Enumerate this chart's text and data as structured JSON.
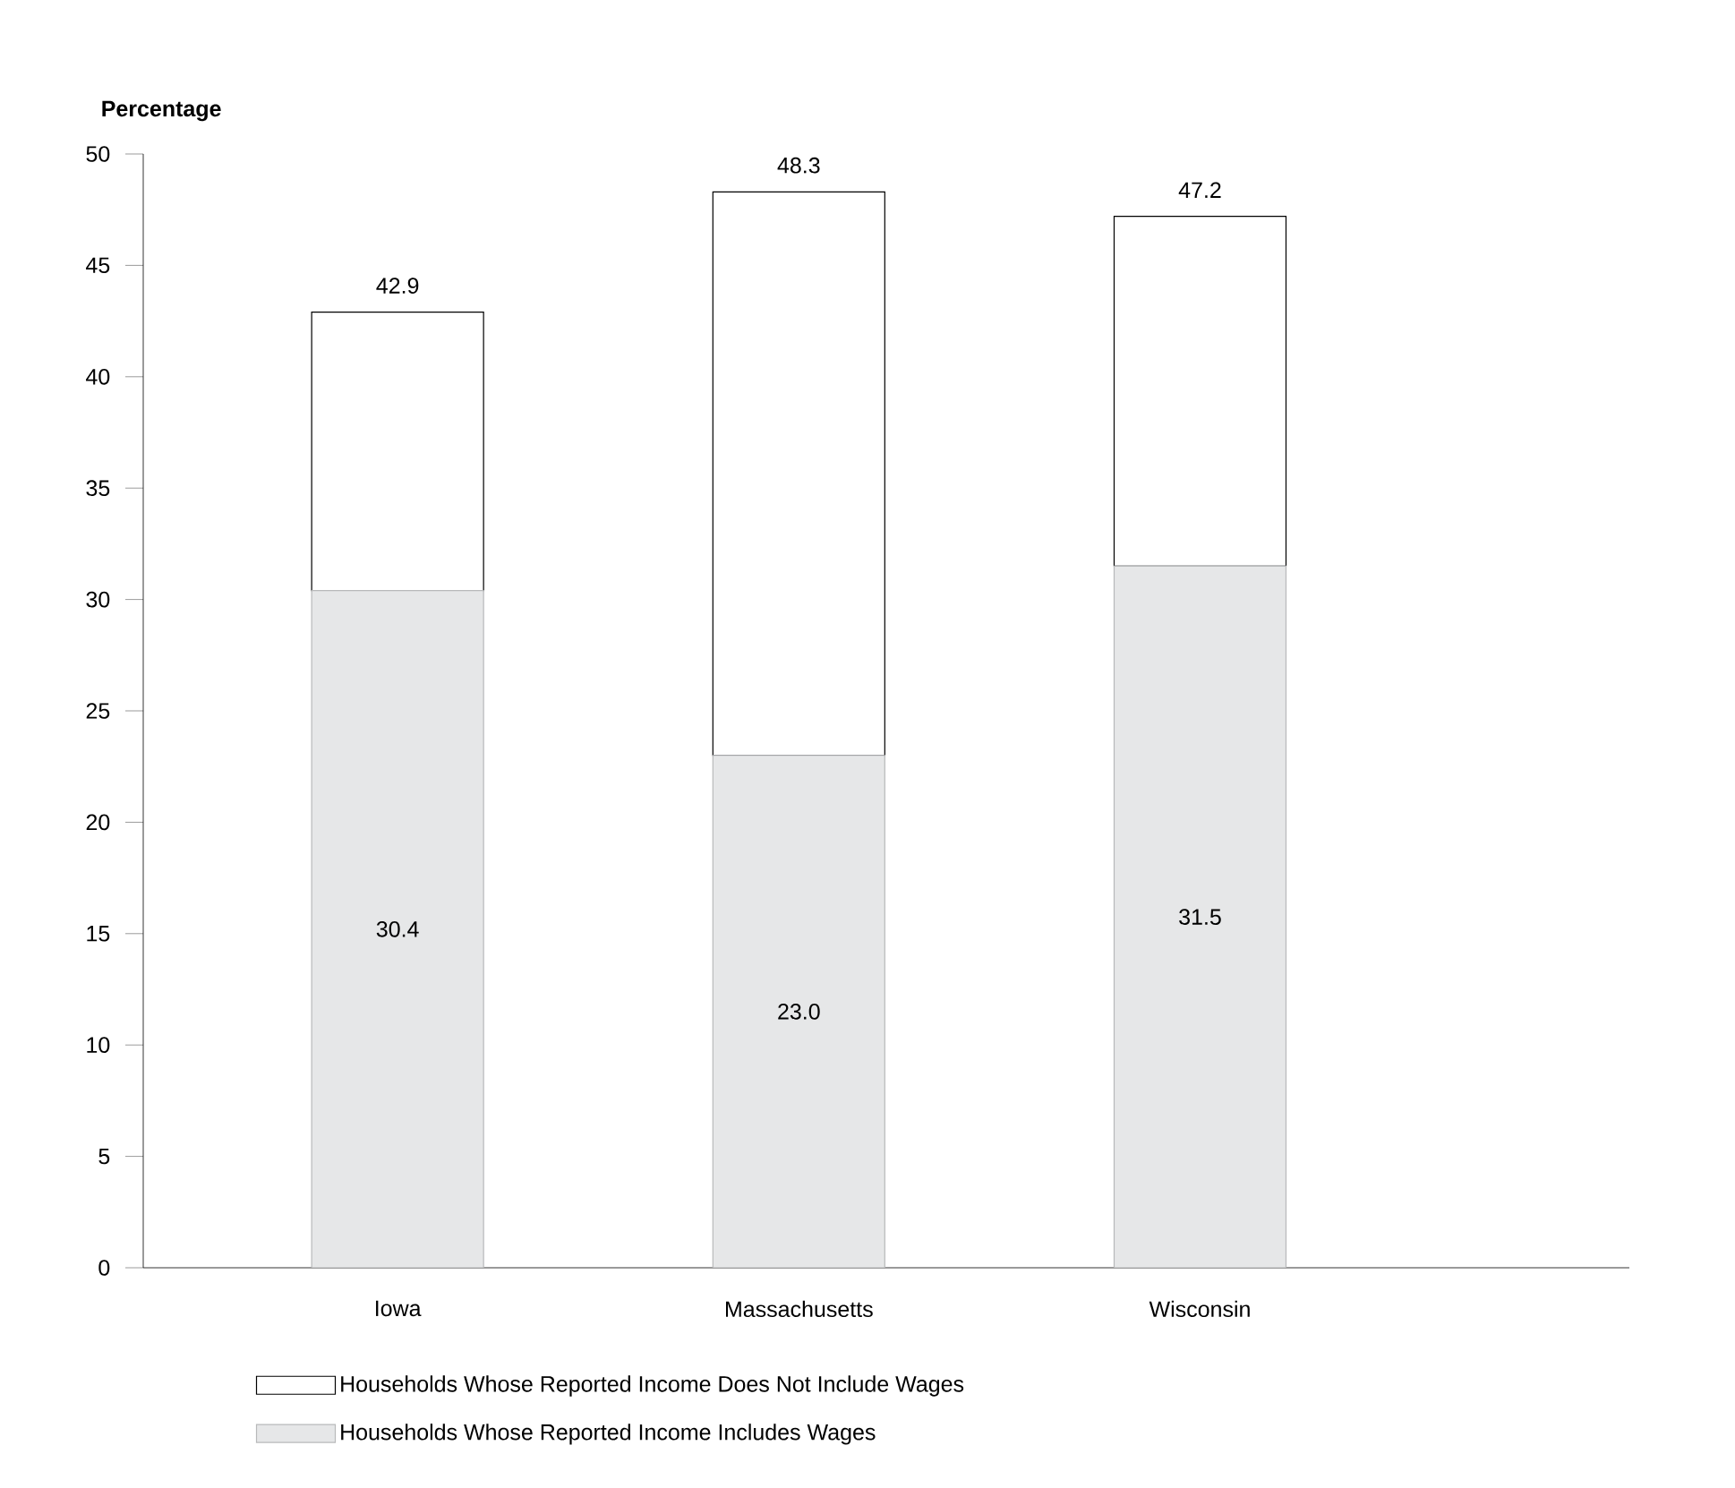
{
  "chart_data": {
    "type": "bar",
    "ylabel": "Percentage",
    "categories": [
      "Iowa",
      "Massachusetts",
      "Wisconsin"
    ],
    "stacked": true,
    "series": [
      {
        "name": "Households Whose Reported Income Includes Wages",
        "color": "#e6e7e8",
        "values": [
          30.4,
          23.0,
          31.5
        ],
        "value_labels": [
          "30.4",
          "23.0",
          "31.5"
        ]
      },
      {
        "name": "Households Whose Reported Income Does Not Include Wages",
        "color": "#ffffff",
        "values": [
          12.5,
          25.3,
          15.7
        ]
      }
    ],
    "totals": [
      "42.9",
      "48.3",
      "47.2"
    ],
    "ylim": [
      0,
      50
    ],
    "yticks": [
      0,
      5,
      10,
      15,
      20,
      25,
      30,
      35,
      40,
      45,
      50
    ],
    "legend": "bottom left",
    "grid": false
  }
}
